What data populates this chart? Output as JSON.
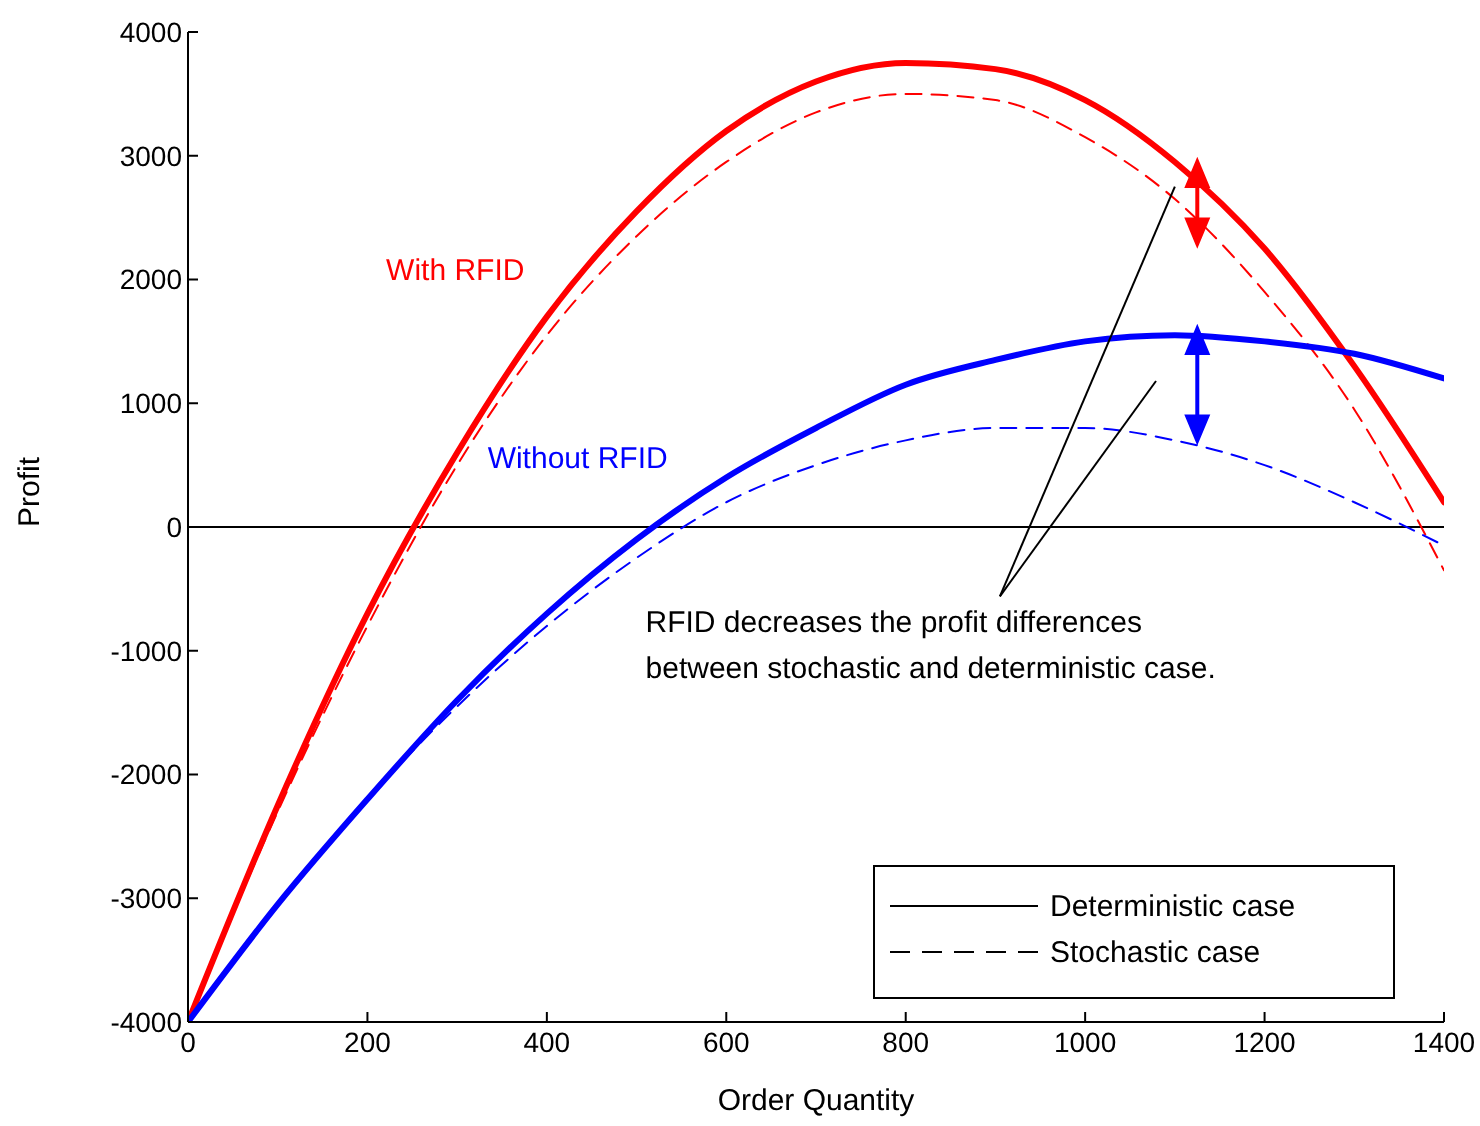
{
  "chart_data": {
    "type": "line",
    "xlabel": "Order Quantity",
    "ylabel": "Profit",
    "x": [
      0,
      100,
      200,
      300,
      400,
      500,
      600,
      700,
      800,
      900,
      1000,
      1100,
      1200,
      1300,
      1400
    ],
    "series": [
      {
        "color": "#ff0000",
        "line_style": "solid",
        "values": [
          -4000,
          -2250,
          -700,
          600,
          1700,
          2550,
          3200,
          3600,
          3750,
          3700,
          3450,
          2950,
          2250,
          1300,
          200
        ]
      },
      {
        "color": "#ff0000",
        "line_style": "dashed",
        "values": [
          -4000,
          -2300,
          -800,
          500,
          1550,
          2350,
          2950,
          3350,
          3500,
          3450,
          3150,
          2650,
          1900,
          950,
          -350
        ]
      },
      {
        "color": "#0000ff",
        "line_style": "solid",
        "values": [
          -4000,
          -3050,
          -2200,
          -1400,
          -700,
          -100,
          400,
          800,
          1150,
          1350,
          1500,
          1550,
          1500,
          1400,
          1200
        ]
      },
      {
        "color": "#0000ff",
        "line_style": "dashed",
        "values": [
          -4000,
          -3050,
          -2200,
          -1450,
          -800,
          -250,
          200,
          500,
          700,
          800,
          800,
          700,
          500,
          200,
          -150
        ]
      },
      {
        "name": "Deterministic case",
        "color": "#000000",
        "line_style": "solid",
        "values": [
          null,
          null,
          null,
          null,
          null,
          null,
          null,
          null,
          null,
          null,
          null,
          null,
          null,
          null,
          null
        ]
      },
      {
        "name": "Stochastic case",
        "color": "#000000",
        "line_style": "dashed",
        "values": [
          null,
          null,
          null,
          null,
          null,
          null,
          null,
          null,
          null,
          null,
          null,
          null,
          null,
          null,
          null
        ]
      }
    ],
    "xlim": [
      0,
      1400
    ],
    "xticks": [
      0,
      200,
      400,
      600,
      800,
      1000,
      1200,
      1400
    ],
    "ylim": [
      -4000,
      4000
    ],
    "yticks": [
      -4000,
      -3000,
      -2000,
      -1000,
      0,
      1000,
      2000,
      3000,
      4000
    ],
    "ref_lines": [
      {
        "axis": "y",
        "value": 0,
        "color": "#000000"
      }
    ],
    "annotations": [
      "With RFID",
      "Without RFID",
      {
        "text": "RFID decreases the profit differences\nbetween stochastic and deterministic case.",
        "x": 1100,
        "y": 2750
      }
    ],
    "grid": false,
    "legend": "bottom right",
    "marker": "none"
  }
}
